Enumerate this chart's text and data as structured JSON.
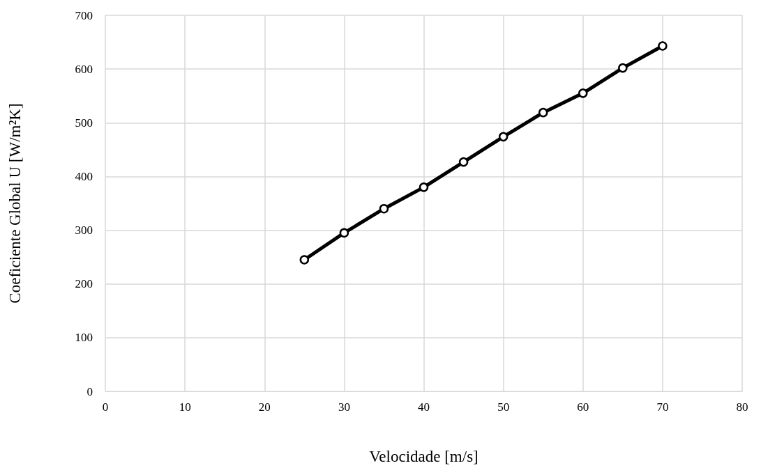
{
  "chart_data": {
    "type": "line",
    "xlabel": "Velocidade [m/s]",
    "ylabel": "Coeficiente Global U [W/m²K]",
    "x": [
      25,
      30,
      35,
      40,
      45,
      50,
      55,
      60,
      65,
      70
    ],
    "series": [
      {
        "color": "#000000",
        "values": [
          245,
          295,
          340,
          380,
          427,
          474,
          519,
          555,
          602,
          643
        ]
      }
    ],
    "xlim": [
      0,
      80
    ],
    "xticks": [
      0,
      10,
      20,
      30,
      40,
      50,
      60,
      70,
      80
    ],
    "ylim": [
      0,
      700
    ],
    "yticks": [
      0,
      100,
      200,
      300,
      400,
      500,
      600,
      700
    ],
    "grid": true,
    "marker": "circle",
    "line_style": "solid"
  }
}
